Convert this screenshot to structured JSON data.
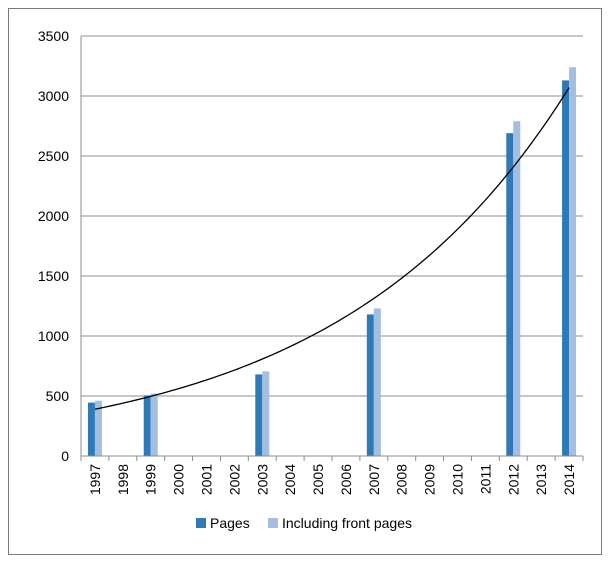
{
  "chart_data": {
    "type": "bar",
    "title": "",
    "xlabel": "",
    "ylabel": "",
    "categories": [
      "1997",
      "1998",
      "1999",
      "2000",
      "2001",
      "2002",
      "2003",
      "2004",
      "2005",
      "2006",
      "2007",
      "2008",
      "2009",
      "2010",
      "2011",
      "2012",
      "2013",
      "2014"
    ],
    "series": [
      {
        "name": "Pages",
        "color": "#2e7ab8",
        "values": [
          445,
          null,
          505,
          null,
          null,
          null,
          680,
          null,
          null,
          null,
          1180,
          null,
          null,
          null,
          null,
          2690,
          null,
          3130
        ]
      },
      {
        "name": "Including front pages",
        "color": "#a3bedf",
        "values": [
          460,
          null,
          520,
          null,
          null,
          null,
          705,
          null,
          null,
          null,
          1230,
          null,
          null,
          null,
          null,
          2790,
          null,
          3240
        ]
      }
    ],
    "trendline": {
      "type": "exponential",
      "color": "#000000",
      "from": 1997,
      "to": 2014,
      "start_value": 390,
      "end_value": 3070
    },
    "ylim": [
      0,
      3500
    ],
    "yticks": [
      0,
      500,
      1000,
      1500,
      2000,
      2500,
      3000,
      3500
    ],
    "grid": true,
    "legend": "bottom"
  }
}
